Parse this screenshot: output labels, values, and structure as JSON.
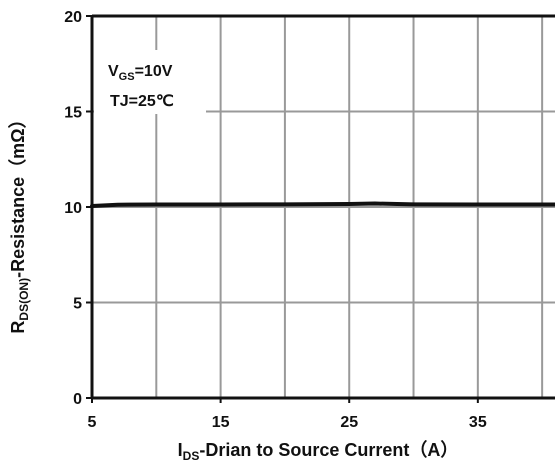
{
  "chart_data": {
    "type": "line",
    "x_ticks": [
      "5",
      "15",
      "25",
      "35"
    ],
    "y_ticks": [
      "0",
      "5",
      "10",
      "15",
      "20"
    ],
    "xlim": [
      5,
      41
    ],
    "ylim": [
      0,
      20
    ],
    "x_grid_step": 5,
    "y_grid_step": 5,
    "grid": true,
    "xlabel": {
      "main": "I",
      "sub": "DS",
      "rest": "-Drian to Source  Current（A）"
    },
    "ylabel": {
      "main": "R",
      "sub": "DS(ON)",
      "rest": "-Resistance（mΩ）"
    },
    "annotations": [
      {
        "main": "V",
        "sub": "GS",
        "rest": "=10V"
      },
      {
        "main": "TJ=25℃",
        "sub": "",
        "rest": ""
      }
    ],
    "series": [
      {
        "x": [
          5,
          7,
          10,
          15,
          20,
          25,
          27,
          30,
          35,
          41
        ],
        "y": [
          10.05,
          10.12,
          10.13,
          10.13,
          10.14,
          10.16,
          10.18,
          10.14,
          10.13,
          10.13
        ]
      }
    ],
    "colors": {
      "line": "#111111",
      "grid": "#999999",
      "frame": "#111111",
      "background": "#ffffff"
    }
  }
}
